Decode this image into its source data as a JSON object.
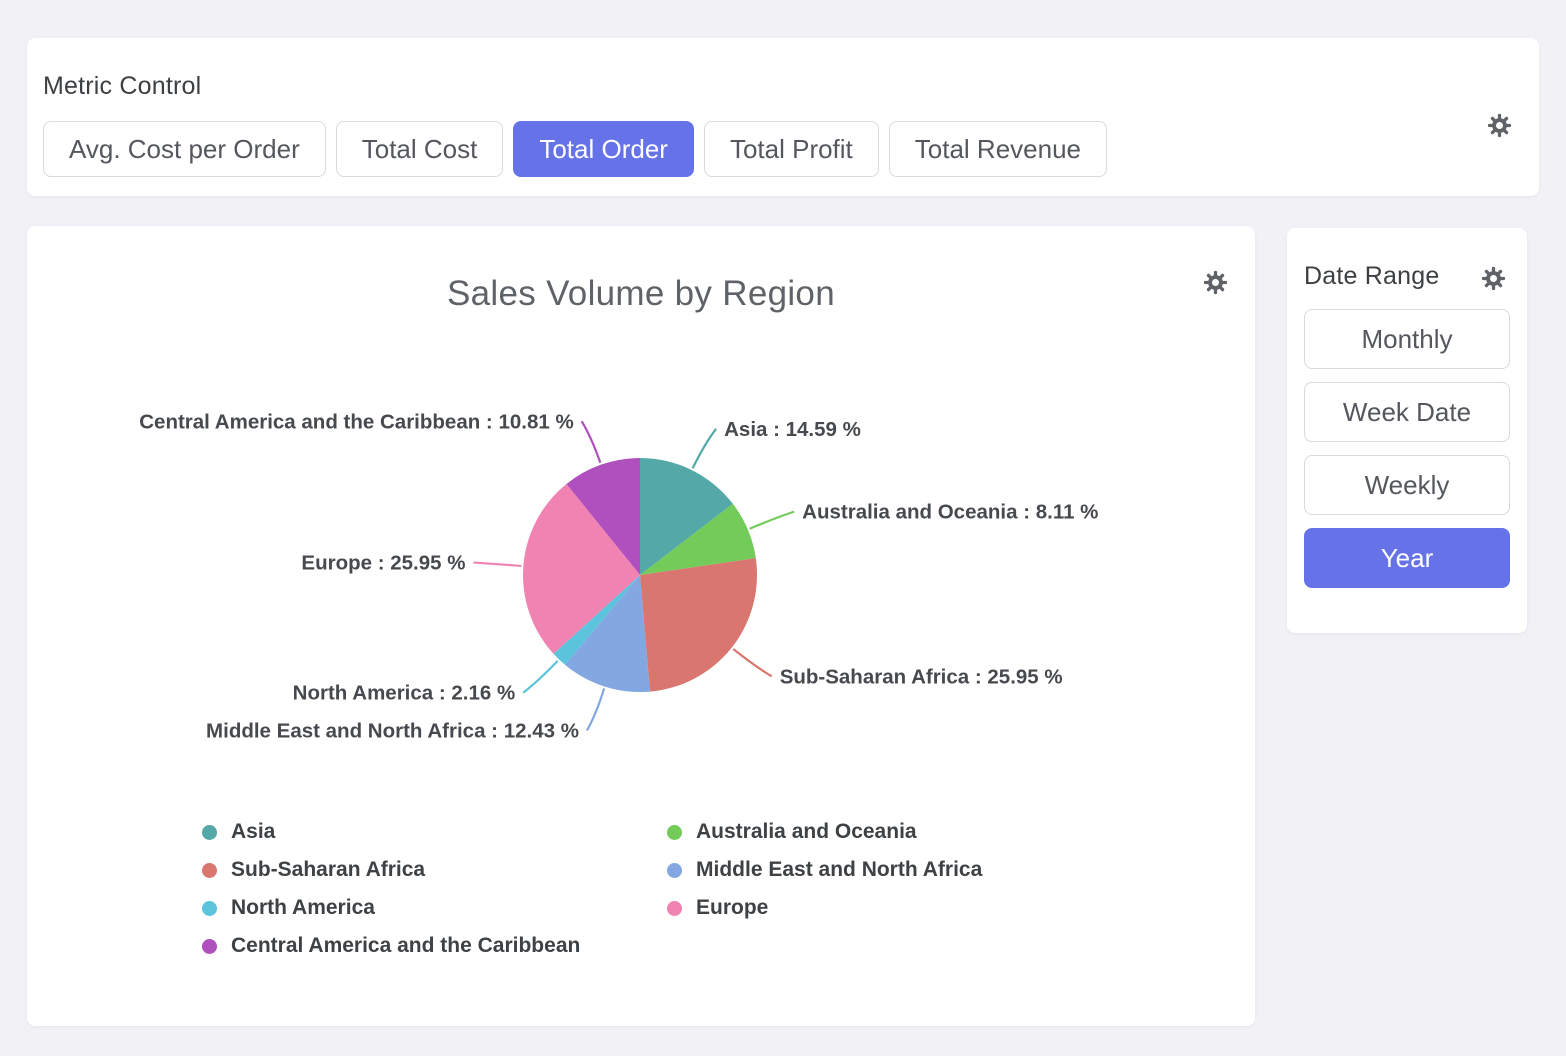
{
  "colors": {
    "accent": "#6673E8",
    "page_background": "#F1F1F6",
    "card_background": "#FFFFFF",
    "gear": "#5F6368",
    "label_text": "#46494E"
  },
  "icons": {
    "settings": "gear"
  },
  "metric_control": {
    "title": "Metric Control",
    "options": [
      "Avg. Cost per Order",
      "Total Cost",
      "Total Order",
      "Total Profit",
      "Total Revenue"
    ],
    "selected": "Total Order"
  },
  "chart_card": {
    "title": "Sales Volume by Region"
  },
  "date_range": {
    "title": "Date Range",
    "options": [
      "Monthly",
      "Week Date",
      "Weekly",
      "Year"
    ],
    "selected": "Year"
  },
  "chart_data": {
    "type": "pie",
    "title": "Sales Volume by Region",
    "unit": "%",
    "start_angle_deg": 0,
    "clockwise": true,
    "legend_position": "bottom",
    "series": [
      {
        "name": "Asia",
        "value": 14.59,
        "color": "#54A8A8",
        "label": "Asia : 14.59 %"
      },
      {
        "name": "Australia and Oceania",
        "value": 8.11,
        "color": "#73CB5A",
        "label": "Australia and Oceania : 8.11 %"
      },
      {
        "name": "Sub-Saharan Africa",
        "value": 25.95,
        "color": "#D9766F",
        "label": "Sub-Saharan Africa : 25.95 %"
      },
      {
        "name": "Middle East and North Africa",
        "value": 12.43,
        "color": "#82A7E1",
        "label": "Middle East and North Africa : 12.43 %"
      },
      {
        "name": "North America",
        "value": 2.16,
        "color": "#5BC4DC",
        "label": "North America : 2.16 %"
      },
      {
        "name": "Europe",
        "value": 25.95,
        "color": "#F083B1",
        "label": "Europe : 25.95 %"
      },
      {
        "name": "Central America and the Caribbean",
        "value": 10.81,
        "color": "#B050BE",
        "label": "Central America and the Caribbean : 10.81 %"
      }
    ],
    "legend_columns": [
      [
        0,
        2,
        4,
        6
      ],
      [
        1,
        3,
        5
      ]
    ]
  }
}
